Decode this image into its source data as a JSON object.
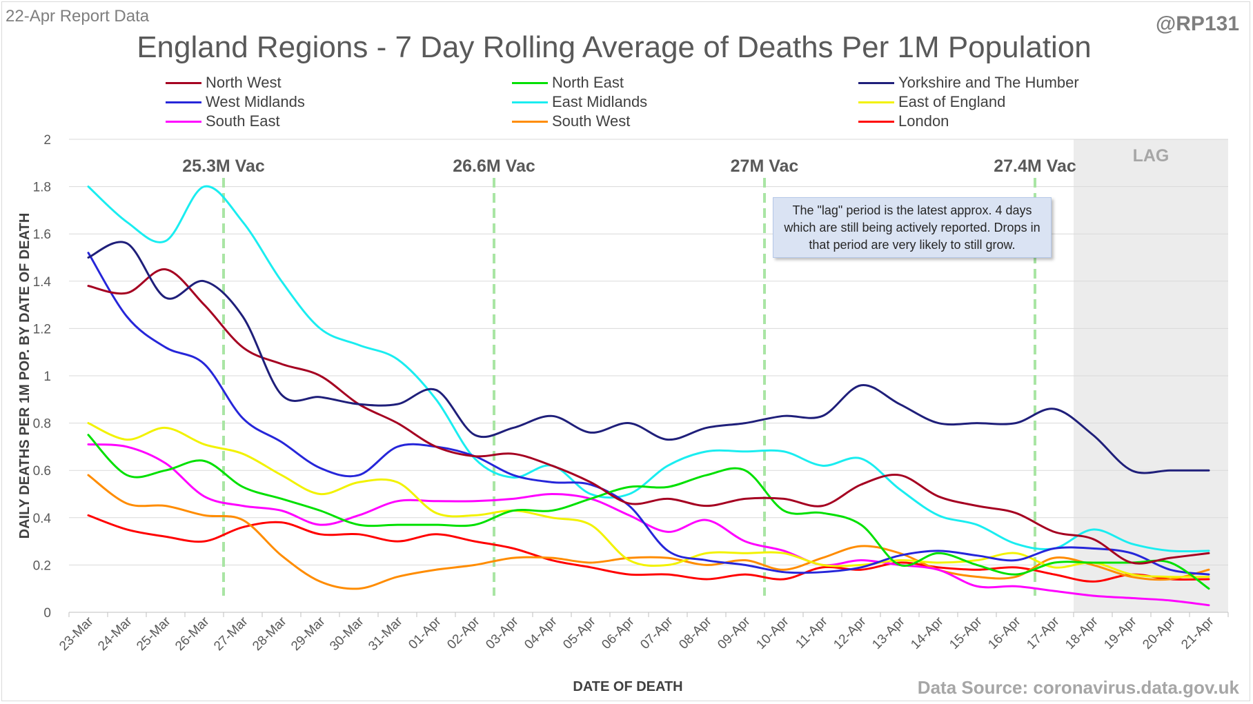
{
  "report_label": "22-Apr Report Data",
  "handle": "@RP131",
  "source": "Data Source: coronavirus.data.gov.uk",
  "note": "The \"lag\" period is the latest approx. 4 days which are still being actively reported.  Drops in that period are very likely to still grow.",
  "chart_data": {
    "type": "line",
    "title": "England Regions - 7 Day Rolling Average of Deaths Per 1M Population",
    "xlabel": "DATE OF DEATH",
    "ylabel": "DAILY DEATHS PER 1M POP. BY DATE OF DEATH",
    "ylim": [
      0,
      2
    ],
    "yticks": [
      0,
      0.2,
      0.4,
      0.6,
      0.8,
      1,
      1.2,
      1.4,
      1.6,
      1.8,
      2
    ],
    "ytick_labels": [
      "0",
      "0.2",
      "0.4",
      "0.6",
      "0.8",
      "1",
      "1.2",
      "1.4",
      "1.6",
      "1.8",
      "2"
    ],
    "grid": true,
    "legend": "top",
    "x": [
      "23-Mar",
      "24-Mar",
      "25-Mar",
      "26-Mar",
      "27-Mar",
      "28-Mar",
      "29-Mar",
      "30-Mar",
      "31-Mar",
      "01-Apr",
      "02-Apr",
      "03-Apr",
      "04-Apr",
      "05-Apr",
      "06-Apr",
      "07-Apr",
      "08-Apr",
      "09-Apr",
      "10-Apr",
      "11-Apr",
      "12-Apr",
      "13-Apr",
      "14-Apr",
      "15-Apr",
      "16-Apr",
      "17-Apr",
      "18-Apr",
      "19-Apr",
      "20-Apr",
      "21-Apr"
    ],
    "lag_region": {
      "from": "18-Apr",
      "label": "LAG"
    },
    "vaccine_markers": [
      {
        "label": "25.3M Vac",
        "position": 3.5
      },
      {
        "label": "26.6M Vac",
        "position": 10.5
      },
      {
        "label": "27M Vac",
        "position": 17.5
      },
      {
        "label": "27.4M Vac",
        "position": 24.5
      }
    ],
    "series": [
      {
        "name": "North West",
        "color": "#a50021",
        "values": [
          1.38,
          1.35,
          1.45,
          1.3,
          1.12,
          1.05,
          1.0,
          0.88,
          0.8,
          0.7,
          0.66,
          0.67,
          0.62,
          0.55,
          0.46,
          0.48,
          0.45,
          0.48,
          0.48,
          0.45,
          0.54,
          0.58,
          0.49,
          0.45,
          0.42,
          0.34,
          0.31,
          0.21,
          0.23,
          0.25
        ]
      },
      {
        "name": "North East",
        "color": "#00e000",
        "values": [
          0.75,
          0.58,
          0.6,
          0.64,
          0.53,
          0.48,
          0.43,
          0.37,
          0.37,
          0.37,
          0.37,
          0.43,
          0.43,
          0.48,
          0.53,
          0.53,
          0.58,
          0.6,
          0.43,
          0.42,
          0.37,
          0.2,
          0.25,
          0.2,
          0.16,
          0.21,
          0.21,
          0.21,
          0.21,
          0.1
        ]
      },
      {
        "name": "Yorkshire and The Humber",
        "color": "#1f1f7a",
        "values": [
          1.5,
          1.56,
          1.33,
          1.4,
          1.25,
          0.92,
          0.91,
          0.88,
          0.88,
          0.94,
          0.75,
          0.78,
          0.83,
          0.76,
          0.8,
          0.73,
          0.78,
          0.8,
          0.83,
          0.83,
          0.96,
          0.88,
          0.8,
          0.8,
          0.8,
          0.86,
          0.75,
          0.6,
          0.6,
          0.6
        ]
      },
      {
        "name": "West Midlands",
        "color": "#2626d9",
        "values": [
          1.52,
          1.25,
          1.12,
          1.05,
          0.82,
          0.72,
          0.61,
          0.58,
          0.7,
          0.7,
          0.66,
          0.58,
          0.55,
          0.54,
          0.45,
          0.26,
          0.22,
          0.2,
          0.17,
          0.17,
          0.19,
          0.24,
          0.26,
          0.24,
          0.22,
          0.27,
          0.27,
          0.25,
          0.18,
          0.16
        ]
      },
      {
        "name": "East Midlands",
        "color": "#1aedf0",
        "values": [
          1.8,
          1.65,
          1.57,
          1.8,
          1.65,
          1.4,
          1.2,
          1.13,
          1.07,
          0.9,
          0.65,
          0.57,
          0.62,
          0.5,
          0.5,
          0.62,
          0.68,
          0.68,
          0.68,
          0.62,
          0.65,
          0.52,
          0.41,
          0.37,
          0.29,
          0.27,
          0.35,
          0.29,
          0.26,
          0.26
        ]
      },
      {
        "name": "East of England",
        "color": "#f2f200",
        "values": [
          0.8,
          0.73,
          0.78,
          0.71,
          0.67,
          0.58,
          0.5,
          0.55,
          0.55,
          0.42,
          0.41,
          0.43,
          0.4,
          0.37,
          0.22,
          0.2,
          0.25,
          0.25,
          0.25,
          0.2,
          0.2,
          0.22,
          0.21,
          0.22,
          0.25,
          0.19,
          0.21,
          0.16,
          0.15,
          0.15
        ]
      },
      {
        "name": "South East",
        "color": "#ff00ff",
        "values": [
          0.71,
          0.7,
          0.63,
          0.49,
          0.45,
          0.43,
          0.37,
          0.41,
          0.47,
          0.47,
          0.47,
          0.48,
          0.5,
          0.48,
          0.41,
          0.34,
          0.39,
          0.3,
          0.26,
          0.2,
          0.22,
          0.2,
          0.18,
          0.11,
          0.11,
          0.09,
          0.07,
          0.06,
          0.05,
          0.03
        ]
      },
      {
        "name": "South West",
        "color": "#ff8c00",
        "values": [
          0.58,
          0.46,
          0.45,
          0.41,
          0.39,
          0.24,
          0.13,
          0.1,
          0.15,
          0.18,
          0.2,
          0.23,
          0.23,
          0.21,
          0.23,
          0.23,
          0.2,
          0.22,
          0.18,
          0.23,
          0.28,
          0.25,
          0.18,
          0.15,
          0.15,
          0.23,
          0.2,
          0.15,
          0.14,
          0.18
        ]
      },
      {
        "name": "London",
        "color": "#ff0000",
        "values": [
          0.41,
          0.35,
          0.32,
          0.3,
          0.36,
          0.38,
          0.33,
          0.33,
          0.3,
          0.33,
          0.3,
          0.27,
          0.22,
          0.19,
          0.16,
          0.16,
          0.14,
          0.16,
          0.14,
          0.19,
          0.18,
          0.21,
          0.19,
          0.18,
          0.19,
          0.16,
          0.13,
          0.16,
          0.14,
          0.14
        ]
      }
    ]
  }
}
